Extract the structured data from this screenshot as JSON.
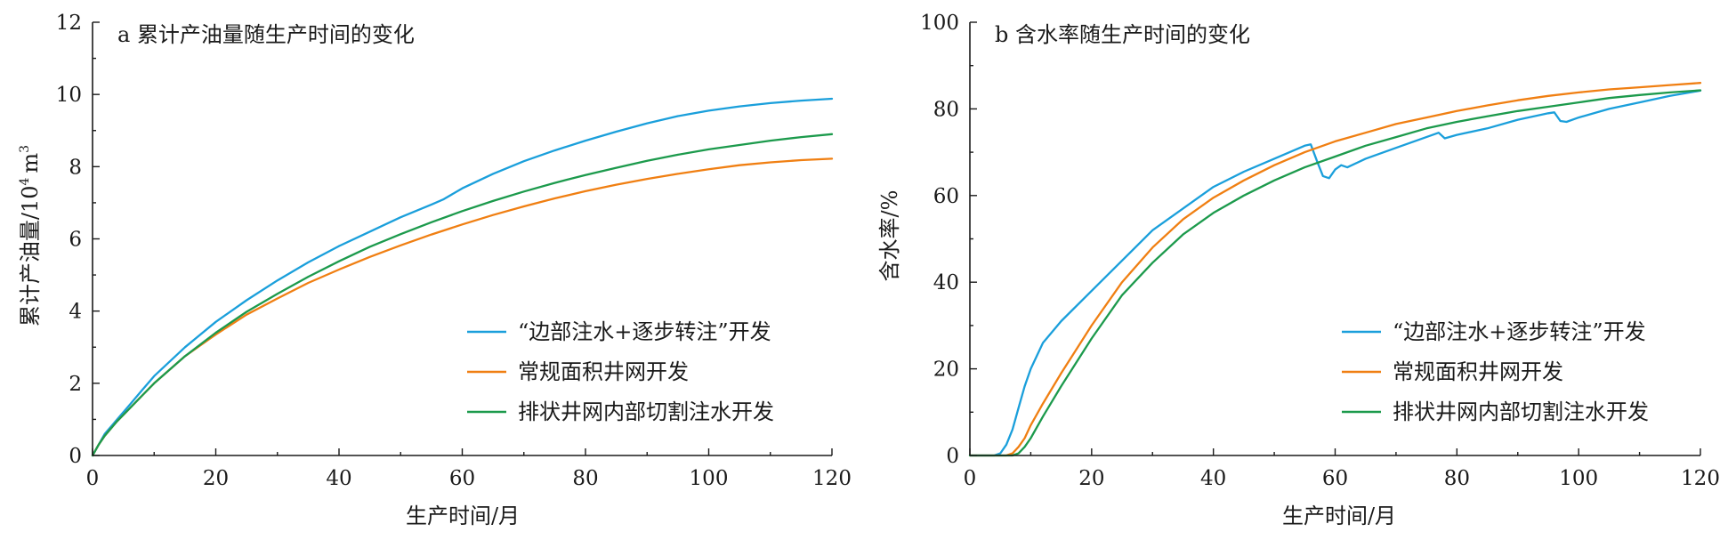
{
  "chart_data": [
    {
      "type": "line",
      "title": "a 累计产油量随生产时间的变化",
      "xlabel": "生产时间/月",
      "ylabel": "累计产油量/10",
      "ylabel_exponent": "4",
      "ylabel_unit": "m",
      "ylabel_unit_exponent": "3",
      "xlim": [
        0,
        120
      ],
      "ylim": [
        0,
        12
      ],
      "xticks": [
        "0",
        "20",
        "40",
        "60",
        "80",
        "100",
        "120"
      ],
      "yticks": [
        "0",
        "2",
        "4",
        "6",
        "8",
        "10",
        "12"
      ],
      "grid": false,
      "legend_position": "bottom-right",
      "series": [
        {
          "name": "“边部注水+逐步转注”开发",
          "color": "#1a9fdb",
          "points": [
            [
              0,
              0
            ],
            [
              1,
              0.3
            ],
            [
              2,
              0.6
            ],
            [
              4,
              1.0
            ],
            [
              6,
              1.4
            ],
            [
              8,
              1.8
            ],
            [
              10,
              2.2
            ],
            [
              15,
              3.0
            ],
            [
              20,
              3.7
            ],
            [
              25,
              4.3
            ],
            [
              30,
              4.85
            ],
            [
              35,
              5.35
            ],
            [
              40,
              5.8
            ],
            [
              45,
              6.2
            ],
            [
              50,
              6.6
            ],
            [
              55,
              6.95
            ],
            [
              57,
              7.1
            ],
            [
              60,
              7.4
            ],
            [
              65,
              7.8
            ],
            [
              70,
              8.15
            ],
            [
              75,
              8.45
            ],
            [
              80,
              8.72
            ],
            [
              85,
              8.97
            ],
            [
              90,
              9.2
            ],
            [
              95,
              9.4
            ],
            [
              100,
              9.55
            ],
            [
              105,
              9.67
            ],
            [
              110,
              9.76
            ],
            [
              115,
              9.83
            ],
            [
              120,
              9.88
            ]
          ]
        },
        {
          "name": "常规面积井网开发",
          "color": "#f07f12",
          "points": [
            [
              0,
              0
            ],
            [
              1,
              0.3
            ],
            [
              2,
              0.55
            ],
            [
              4,
              0.95
            ],
            [
              6,
              1.3
            ],
            [
              8,
              1.65
            ],
            [
              10,
              2.0
            ],
            [
              15,
              2.75
            ],
            [
              20,
              3.35
            ],
            [
              25,
              3.9
            ],
            [
              30,
              4.35
            ],
            [
              35,
              4.78
            ],
            [
              40,
              5.15
            ],
            [
              45,
              5.5
            ],
            [
              50,
              5.82
            ],
            [
              55,
              6.12
            ],
            [
              60,
              6.4
            ],
            [
              65,
              6.66
            ],
            [
              70,
              6.9
            ],
            [
              75,
              7.12
            ],
            [
              80,
              7.32
            ],
            [
              85,
              7.5
            ],
            [
              90,
              7.66
            ],
            [
              95,
              7.8
            ],
            [
              100,
              7.93
            ],
            [
              105,
              8.04
            ],
            [
              110,
              8.12
            ],
            [
              115,
              8.18
            ],
            [
              120,
              8.22
            ]
          ]
        },
        {
          "name": "排状井网内部切割注水开发",
          "color": "#1c9a4c",
          "points": [
            [
              0,
              0
            ],
            [
              1,
              0.3
            ],
            [
              2,
              0.55
            ],
            [
              4,
              0.95
            ],
            [
              6,
              1.3
            ],
            [
              8,
              1.65
            ],
            [
              10,
              2.0
            ],
            [
              15,
              2.75
            ],
            [
              20,
              3.4
            ],
            [
              25,
              3.98
            ],
            [
              30,
              4.48
            ],
            [
              35,
              4.95
            ],
            [
              40,
              5.38
            ],
            [
              45,
              5.78
            ],
            [
              50,
              6.13
            ],
            [
              55,
              6.46
            ],
            [
              60,
              6.77
            ],
            [
              65,
              7.05
            ],
            [
              70,
              7.31
            ],
            [
              75,
              7.55
            ],
            [
              80,
              7.77
            ],
            [
              85,
              7.97
            ],
            [
              90,
              8.16
            ],
            [
              95,
              8.33
            ],
            [
              100,
              8.48
            ],
            [
              105,
              8.6
            ],
            [
              110,
              8.72
            ],
            [
              115,
              8.82
            ],
            [
              120,
              8.9
            ]
          ]
        }
      ]
    },
    {
      "type": "line",
      "title": "b 含水率随生产时间的变化",
      "xlabel": "生产时间/月",
      "ylabel": "含水率/%",
      "xlim": [
        0,
        120
      ],
      "ylim": [
        0,
        100
      ],
      "xticks": [
        "0",
        "20",
        "40",
        "60",
        "80",
        "100",
        "120"
      ],
      "yticks": [
        "0",
        "20",
        "40",
        "60",
        "80",
        "100"
      ],
      "grid": false,
      "legend_position": "bottom-right",
      "series": [
        {
          "name": "“边部注水+逐步转注”开发",
          "color": "#1a9fdb",
          "points": [
            [
              0,
              0
            ],
            [
              4,
              0
            ],
            [
              5,
              0.5
            ],
            [
              6,
              2.5
            ],
            [
              7,
              6
            ],
            [
              8,
              11
            ],
            [
              9,
              16
            ],
            [
              10,
              20
            ],
            [
              12,
              26
            ],
            [
              15,
              31
            ],
            [
              20,
              38
            ],
            [
              25,
              45
            ],
            [
              30,
              52
            ],
            [
              35,
              57
            ],
            [
              40,
              62
            ],
            [
              45,
              65.5
            ],
            [
              50,
              68.5
            ],
            [
              55,
              71.5
            ],
            [
              56,
              71.8
            ],
            [
              57,
              68
            ],
            [
              58,
              64.5
            ],
            [
              59,
              64
            ],
            [
              60,
              66
            ],
            [
              61,
              67
            ],
            [
              62,
              66.5
            ],
            [
              65,
              68.5
            ],
            [
              70,
              71
            ],
            [
              75,
              73.5
            ],
            [
              77,
              74.5
            ],
            [
              78,
              73.2
            ],
            [
              80,
              74
            ],
            [
              85,
              75.5
            ],
            [
              90,
              77.5
            ],
            [
              95,
              79
            ],
            [
              96,
              79.2
            ],
            [
              97,
              77.2
            ],
            [
              98,
              77
            ],
            [
              100,
              78
            ],
            [
              105,
              80
            ],
            [
              110,
              81.5
            ],
            [
              115,
              83
            ],
            [
              120,
              84.2
            ]
          ]
        },
        {
          "name": "常规面积井网开发",
          "color": "#f07f12",
          "points": [
            [
              0,
              0
            ],
            [
              6,
              0
            ],
            [
              7,
              0.5
            ],
            [
              8,
              2
            ],
            [
              9,
              4
            ],
            [
              10,
              7
            ],
            [
              12,
              12
            ],
            [
              15,
              19
            ],
            [
              20,
              30
            ],
            [
              25,
              40
            ],
            [
              30,
              48
            ],
            [
              35,
              54.5
            ],
            [
              40,
              59.5
            ],
            [
              45,
              63.5
            ],
            [
              50,
              67
            ],
            [
              55,
              70
            ],
            [
              60,
              72.5
            ],
            [
              65,
              74.5
            ],
            [
              70,
              76.5
            ],
            [
              75,
              78
            ],
            [
              80,
              79.5
            ],
            [
              85,
              80.8
            ],
            [
              90,
              82
            ],
            [
              95,
              83
            ],
            [
              100,
              83.8
            ],
            [
              105,
              84.5
            ],
            [
              110,
              85
            ],
            [
              115,
              85.5
            ],
            [
              120,
              86
            ]
          ]
        },
        {
          "name": "排状井网内部切割注水开发",
          "color": "#1c9a4c",
          "points": [
            [
              0,
              0
            ],
            [
              7,
              0
            ],
            [
              8,
              0.5
            ],
            [
              9,
              2
            ],
            [
              10,
              4
            ],
            [
              12,
              9
            ],
            [
              15,
              16
            ],
            [
              20,
              27
            ],
            [
              25,
              37
            ],
            [
              30,
              44.5
            ],
            [
              35,
              51
            ],
            [
              40,
              56
            ],
            [
              45,
              60
            ],
            [
              50,
              63.5
            ],
            [
              55,
              66.5
            ],
            [
              60,
              69
            ],
            [
              65,
              71.5
            ],
            [
              70,
              73.5
            ],
            [
              75,
              75.5
            ],
            [
              80,
              77
            ],
            [
              85,
              78.3
            ],
            [
              90,
              79.5
            ],
            [
              95,
              80.5
            ],
            [
              100,
              81.5
            ],
            [
              105,
              82.5
            ],
            [
              110,
              83.2
            ],
            [
              115,
              83.8
            ],
            [
              120,
              84.3
            ]
          ]
        }
      ]
    }
  ]
}
